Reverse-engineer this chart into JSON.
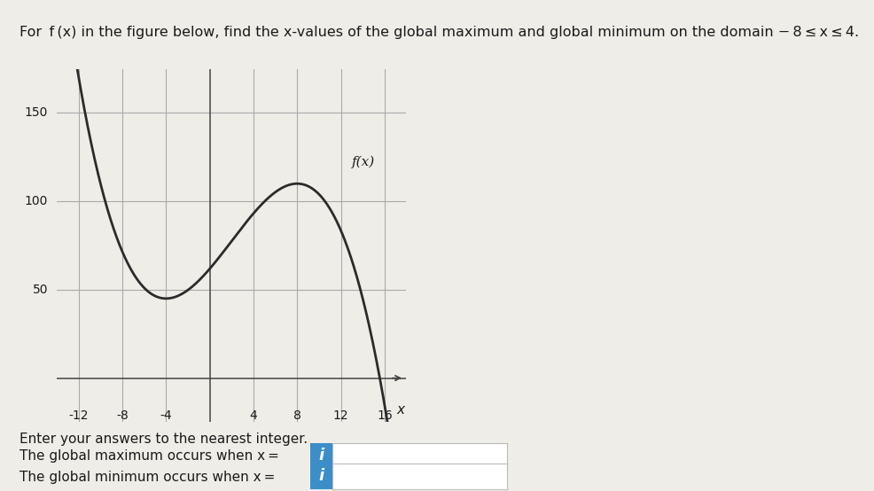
{
  "title_text": "For  f (x) in the figure below, find the x-values of the global maximum and global minimum on the domain − 8 ≤ x ≤ 4.",
  "graph_label": "f(x)",
  "x_axis_label": "x",
  "x_ticks": [
    -12,
    -8,
    -4,
    4,
    8,
    12,
    16
  ],
  "y_ticks": [
    50,
    100,
    150
  ],
  "xlim": [
    -14,
    18
  ],
  "ylim": [
    -25,
    175
  ],
  "curve_color": "#2b2b2b",
  "curve_linewidth": 2.0,
  "grid_color": "#aaaaaa",
  "grid_linewidth": 0.8,
  "bg_color": "#eeede8",
  "text1": "Enter your answers to the nearest integer.",
  "text2": "The global maximum occurs when x =",
  "text3": "The global minimum occurs when x =",
  "box_color": "#3b8ec8",
  "box_text": "i",
  "figsize": [
    9.86,
    5.54
  ],
  "dpi": 100
}
